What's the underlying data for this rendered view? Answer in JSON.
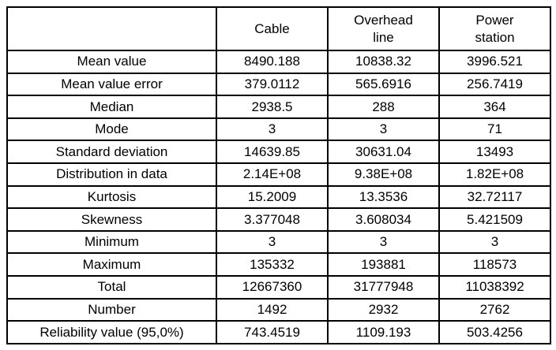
{
  "table": {
    "columns": [
      "",
      "Cable",
      "Overhead\nline",
      "Power\nstation"
    ],
    "rows": [
      {
        "label": "Mean value",
        "values": [
          "8490.188",
          "10838.32",
          "3996.521"
        ]
      },
      {
        "label": "Mean value error",
        "values": [
          "379.0112",
          "565.6916",
          "256.7419"
        ]
      },
      {
        "label": "Median",
        "values": [
          "2938.5",
          "288",
          "364"
        ]
      },
      {
        "label": "Mode",
        "values": [
          "3",
          "3",
          "71"
        ]
      },
      {
        "label": "Standard deviation",
        "values": [
          "14639.85",
          "30631.04",
          "13493"
        ]
      },
      {
        "label": "Distribution in data",
        "values": [
          "2.14E+08",
          "9.38E+08",
          "1.82E+08"
        ]
      },
      {
        "label": "Kurtosis",
        "values": [
          "15.2009",
          "13.3536",
          "32.72117"
        ]
      },
      {
        "label": "Skewness",
        "values": [
          "3.377048",
          "3.608034",
          "5.421509"
        ]
      },
      {
        "label": "Minimum",
        "values": [
          "3",
          "3",
          "3"
        ]
      },
      {
        "label": "Maximum",
        "values": [
          "135332",
          "193881",
          "118573"
        ]
      },
      {
        "label": "Total",
        "values": [
          "12667360",
          "31777948",
          "11038392"
        ]
      },
      {
        "label": "Number",
        "values": [
          "1492",
          "2932",
          "2762"
        ]
      },
      {
        "label": "Reliability value (95,0%)",
        "values": [
          "743.4519",
          "1109.193",
          "503.4256"
        ]
      }
    ]
  },
  "colors": {
    "border": "#000000",
    "background": "#ffffff",
    "text": "#000000"
  }
}
